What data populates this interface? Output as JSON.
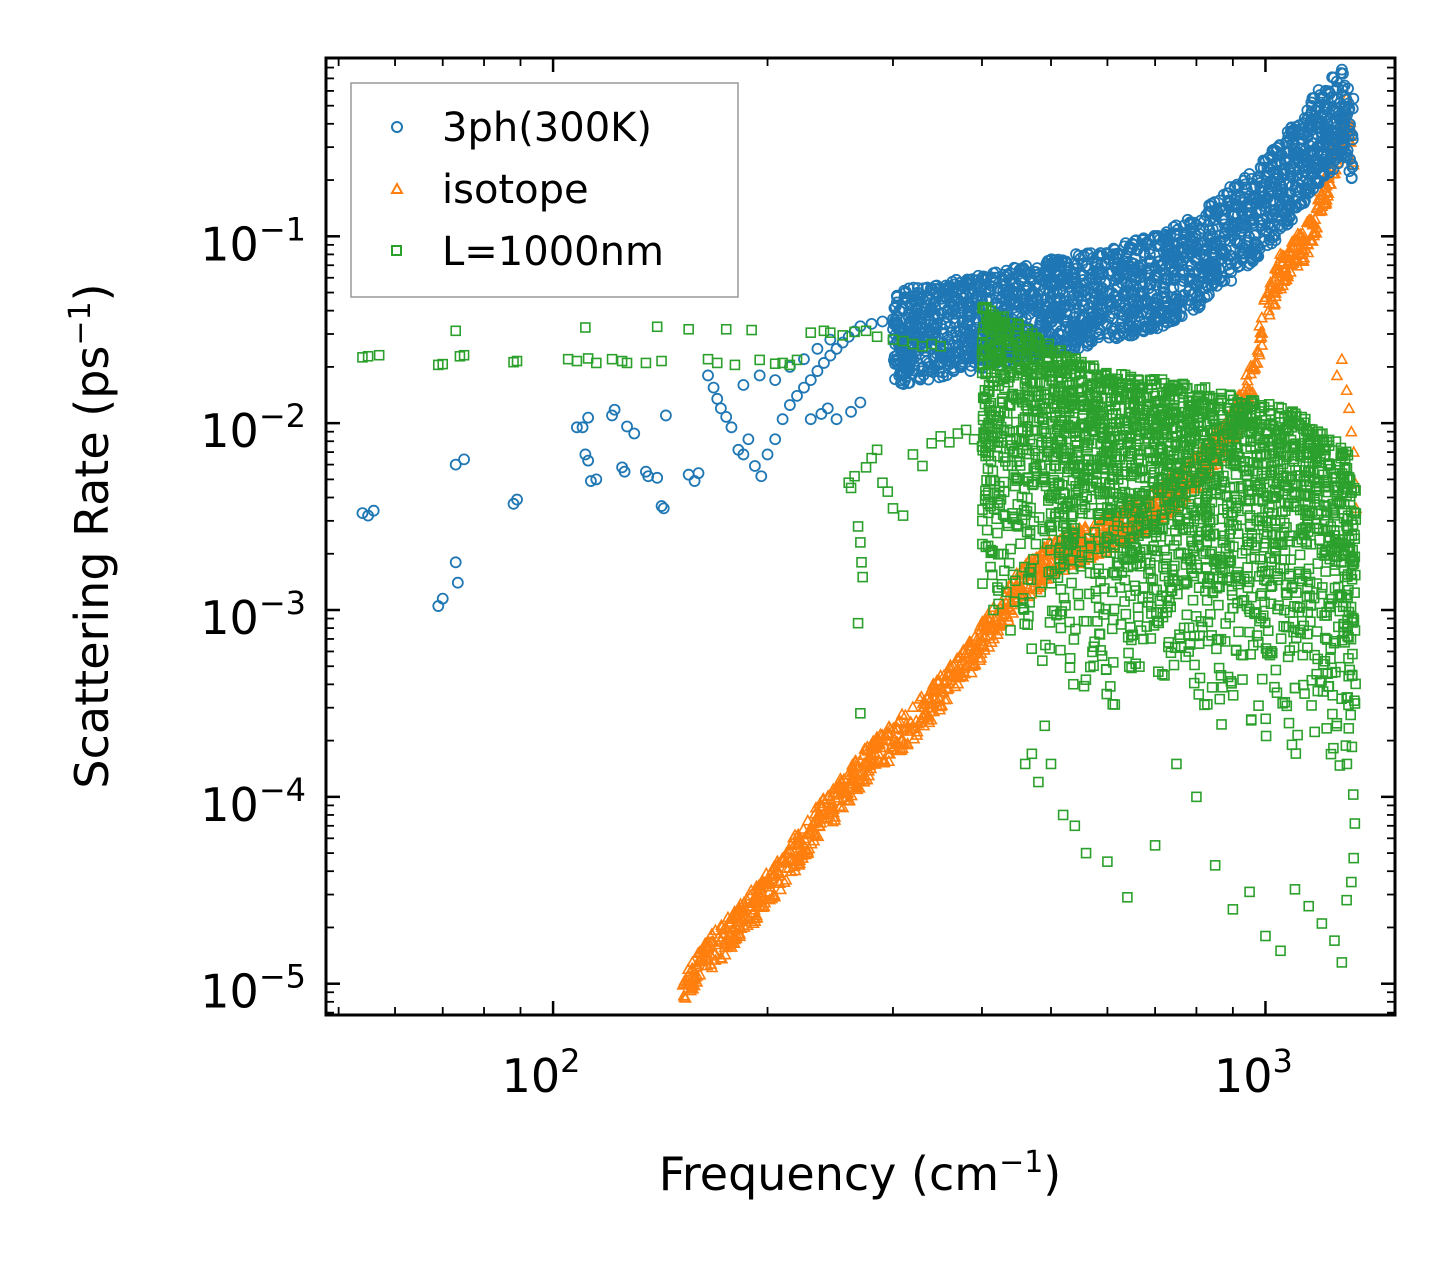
{
  "chart_data": {
    "type": "scatter",
    "xscale": "log",
    "yscale": "log",
    "xlim": [
      48,
      1520
    ],
    "ylim": [
      6.8e-06,
      0.9
    ],
    "xlabel": "Frequency (cm",
    "xlabel_sup": "−1",
    "xlabel_end": ")",
    "ylabel": "Scattering Rate (ps",
    "ylabel_sup": "−1",
    "ylabel_end": ")",
    "x_ticks": [
      {
        "value": 100,
        "base": "10",
        "exp": "2"
      },
      {
        "value": 1000,
        "base": "10",
        "exp": "3"
      }
    ],
    "y_ticks": [
      {
        "value": 0.1,
        "base": "10",
        "exp": "−1"
      },
      {
        "value": 0.01,
        "base": "10",
        "exp": "−2"
      },
      {
        "value": 0.001,
        "base": "10",
        "exp": "−3"
      },
      {
        "value": 0.0001,
        "base": "10",
        "exp": "−4"
      },
      {
        "value": 1e-05,
        "base": "10",
        "exp": "−5"
      }
    ],
    "legend_position": "top-left",
    "series": [
      {
        "name": "3ph(300K)",
        "marker": "circle",
        "color": "#1f77b4",
        "points": [
          [
            54,
            0.0033
          ],
          [
            55,
            0.0032
          ],
          [
            56,
            0.0034
          ],
          [
            69,
            0.00105
          ],
          [
            70,
            0.00115
          ],
          [
            73,
            0.0018
          ],
          [
            73.5,
            0.0014
          ],
          [
            73,
            0.006
          ],
          [
            75,
            0.0064
          ],
          [
            88,
            0.0037
          ],
          [
            89,
            0.0039
          ],
          [
            108,
            0.0095
          ],
          [
            110,
            0.0095
          ],
          [
            111,
            0.0068
          ],
          [
            112,
            0.0063
          ],
          [
            113,
            0.0049
          ],
          [
            115,
            0.005
          ],
          [
            112,
            0.0107
          ],
          [
            121,
            0.011
          ],
          [
            122,
            0.0118
          ],
          [
            125,
            0.0058
          ],
          [
            126,
            0.0055
          ],
          [
            127,
            0.0096
          ],
          [
            130,
            0.0088
          ],
          [
            135,
            0.0055
          ],
          [
            136,
            0.0052
          ],
          [
            140,
            0.0051
          ],
          [
            142,
            0.0036
          ],
          [
            143,
            0.0035
          ],
          [
            144,
            0.011
          ],
          [
            155,
            0.0053
          ],
          [
            158,
            0.0049
          ],
          [
            160,
            0.0054
          ],
          [
            165,
            0.018
          ],
          [
            168,
            0.0155
          ],
          [
            170,
            0.0135
          ],
          [
            172,
            0.012
          ],
          [
            175,
            0.0108
          ],
          [
            178,
            0.0095
          ],
          [
            182,
            0.0072
          ],
          [
            185,
            0.0068
          ],
          [
            188,
            0.0082
          ],
          [
            192,
            0.0059
          ],
          [
            196,
            0.0052
          ],
          [
            200,
            0.0068
          ],
          [
            205,
            0.0082
          ],
          [
            210,
            0.0105
          ],
          [
            215,
            0.0125
          ],
          [
            220,
            0.014
          ],
          [
            225,
            0.0155
          ],
          [
            230,
            0.017
          ],
          [
            235,
            0.019
          ],
          [
            240,
            0.021
          ],
          [
            245,
            0.023
          ],
          [
            250,
            0.025
          ],
          [
            255,
            0.027
          ],
          [
            260,
            0.029
          ],
          [
            265,
            0.031
          ],
          [
            270,
            0.033
          ],
          [
            280,
            0.034
          ],
          [
            290,
            0.035
          ],
          [
            300,
            0.036
          ],
          [
            230,
            0.0105
          ],
          [
            238,
            0.0112
          ],
          [
            243,
            0.012
          ],
          [
            250,
            0.0105
          ],
          [
            262,
            0.0115
          ],
          [
            270,
            0.0129
          ],
          [
            185,
            0.016
          ],
          [
            195,
            0.018
          ],
          [
            205,
            0.017
          ],
          [
            215,
            0.02
          ],
          [
            225,
            0.022
          ],
          [
            235,
            0.025
          ],
          [
            245,
            0.028
          ]
        ],
        "trend": [
          [
            300,
            0.035
          ],
          [
            400,
            0.043
          ],
          [
            500,
            0.052
          ],
          [
            600,
            0.06
          ],
          [
            700,
            0.07
          ],
          [
            800,
            0.09
          ],
          [
            900,
            0.13
          ],
          [
            1000,
            0.18
          ],
          [
            1100,
            0.28
          ],
          [
            1200,
            0.45
          ],
          [
            1290,
            0.56
          ],
          [
            1330,
            0.4
          ]
        ],
        "spread": [
          0.45,
          1.45
        ]
      },
      {
        "name": "isotope",
        "marker": "triangle",
        "color": "#ff7f0e",
        "trend": [
          [
            152,
            1e-05
          ],
          [
            175,
            1.8e-05
          ],
          [
            200,
            3.2e-05
          ],
          [
            240,
            8e-05
          ],
          [
            280,
            0.00016
          ],
          [
            330,
            0.00028
          ],
          [
            380,
            0.00052
          ],
          [
            420,
            0.0009
          ],
          [
            450,
            0.0013
          ],
          [
            500,
            0.0019
          ],
          [
            600,
            0.0026
          ],
          [
            700,
            0.0035
          ],
          [
            800,
            0.0055
          ],
          [
            900,
            0.0095
          ],
          [
            960,
            0.018
          ],
          [
            1000,
            0.04
          ],
          [
            1050,
            0.065
          ],
          [
            1100,
            0.08
          ],
          [
            1150,
            0.1
          ],
          [
            1200,
            0.15
          ],
          [
            1260,
            0.3
          ],
          [
            1300,
            0.45
          ],
          [
            1330,
            0.28
          ]
        ],
        "spread": [
          0.8,
          1.25
        ],
        "points": [
          [
            1300,
            0.015
          ],
          [
            1310,
            0.012
          ],
          [
            1320,
            0.009
          ],
          [
            1330,
            0.007
          ],
          [
            1340,
            0.0035
          ],
          [
            1335,
            0.0048
          ],
          [
            1280,
            0.022
          ],
          [
            1260,
            0.018
          ]
        ]
      },
      {
        "name": "L=1000nm",
        "marker": "square",
        "color": "#2ca02c",
        "points": [
          [
            54,
            0.0225
          ],
          [
            55,
            0.0228
          ],
          [
            57,
            0.0231
          ],
          [
            69,
            0.0205
          ],
          [
            70,
            0.0207
          ],
          [
            73,
            0.0312
          ],
          [
            74,
            0.0228
          ],
          [
            75,
            0.0231
          ],
          [
            88,
            0.0212
          ],
          [
            89,
            0.0215
          ],
          [
            105,
            0.022
          ],
          [
            108,
            0.0215
          ],
          [
            111,
            0.0325
          ],
          [
            112,
            0.0222
          ],
          [
            115,
            0.021
          ],
          [
            121,
            0.022
          ],
          [
            125,
            0.0215
          ],
          [
            127,
            0.021
          ],
          [
            135,
            0.021
          ],
          [
            140,
            0.0328
          ],
          [
            142,
            0.0215
          ],
          [
            155,
            0.0318
          ],
          [
            165,
            0.022
          ],
          [
            170,
            0.021
          ],
          [
            175,
            0.0318
          ],
          [
            180,
            0.0205
          ],
          [
            190,
            0.0315
          ],
          [
            195,
            0.0218
          ],
          [
            205,
            0.0208
          ],
          [
            210,
            0.021
          ],
          [
            215,
            0.0205
          ],
          [
            220,
            0.0218
          ],
          [
            230,
            0.0305
          ],
          [
            240,
            0.0312
          ],
          [
            245,
            0.0305
          ],
          [
            255,
            0.0295
          ],
          [
            265,
            0.0308
          ],
          [
            275,
            0.0312
          ],
          [
            285,
            0.029
          ],
          [
            300,
            0.028
          ],
          [
            310,
            0.0275
          ],
          [
            320,
            0.0265
          ],
          [
            330,
            0.0258
          ],
          [
            340,
            0.0265
          ],
          [
            350,
            0.0258
          ],
          [
            260,
            0.0048
          ],
          [
            262,
            0.0045
          ],
          [
            265,
            0.0052
          ],
          [
            268,
            0.0028
          ],
          [
            270,
            0.0023
          ],
          [
            271,
            0.0018
          ],
          [
            272,
            0.0015
          ],
          [
            268,
            0.00085
          ],
          [
            270,
            0.00028
          ],
          [
            275,
            0.0058
          ],
          [
            280,
            0.0065
          ],
          [
            285,
            0.0072
          ],
          [
            290,
            0.0048
          ],
          [
            295,
            0.0043
          ],
          [
            300,
            0.0035
          ],
          [
            310,
            0.0032
          ],
          [
            320,
            0.0068
          ],
          [
            330,
            0.0059
          ],
          [
            340,
            0.0078
          ],
          [
            350,
            0.0085
          ],
          [
            360,
            0.0079
          ],
          [
            370,
            0.0088
          ],
          [
            380,
            0.0092
          ],
          [
            390,
            0.0082
          ],
          [
            400,
            0.0075
          ],
          [
            450,
            0.0028
          ],
          [
            460,
            0.00015
          ],
          [
            470,
            0.00017
          ],
          [
            480,
            0.00012
          ],
          [
            490,
            0.00024
          ],
          [
            500,
            0.00015
          ],
          [
            520,
            8e-05
          ],
          [
            540,
            7e-05
          ],
          [
            560,
            5e-05
          ],
          [
            600,
            4.5e-05
          ],
          [
            640,
            2.9e-05
          ],
          [
            700,
            5.5e-05
          ],
          [
            750,
            0.00015
          ],
          [
            800,
            0.0001
          ],
          [
            850,
            4.3e-05
          ],
          [
            900,
            2.5e-05
          ],
          [
            950,
            3.1e-05
          ],
          [
            1000,
            1.8e-05
          ],
          [
            1050,
            1.5e-05
          ],
          [
            1100,
            3.2e-05
          ],
          [
            1150,
            2.6e-05
          ],
          [
            1200,
            2.1e-05
          ],
          [
            1250,
            1.7e-05
          ],
          [
            1280,
            1.3e-05
          ],
          [
            1300,
            2.8e-05
          ],
          [
            1320,
            3.5e-05
          ],
          [
            1330,
            4.7e-05
          ],
          [
            1335,
            7.2e-05
          ]
        ],
        "trend": [
          [
            400,
            0.015
          ],
          [
            450,
            0.012
          ],
          [
            500,
            0.009
          ],
          [
            550,
            0.0075
          ],
          [
            600,
            0.0065
          ],
          [
            700,
            0.006
          ],
          [
            800,
            0.0055
          ],
          [
            900,
            0.005
          ],
          [
            1000,
            0.0045
          ],
          [
            1100,
            0.004
          ],
          [
            1200,
            0.0032
          ],
          [
            1300,
            0.0025
          ],
          [
            1340,
            0.0015
          ]
        ],
        "spread": [
          0.04,
          2.9
        ]
      }
    ]
  }
}
